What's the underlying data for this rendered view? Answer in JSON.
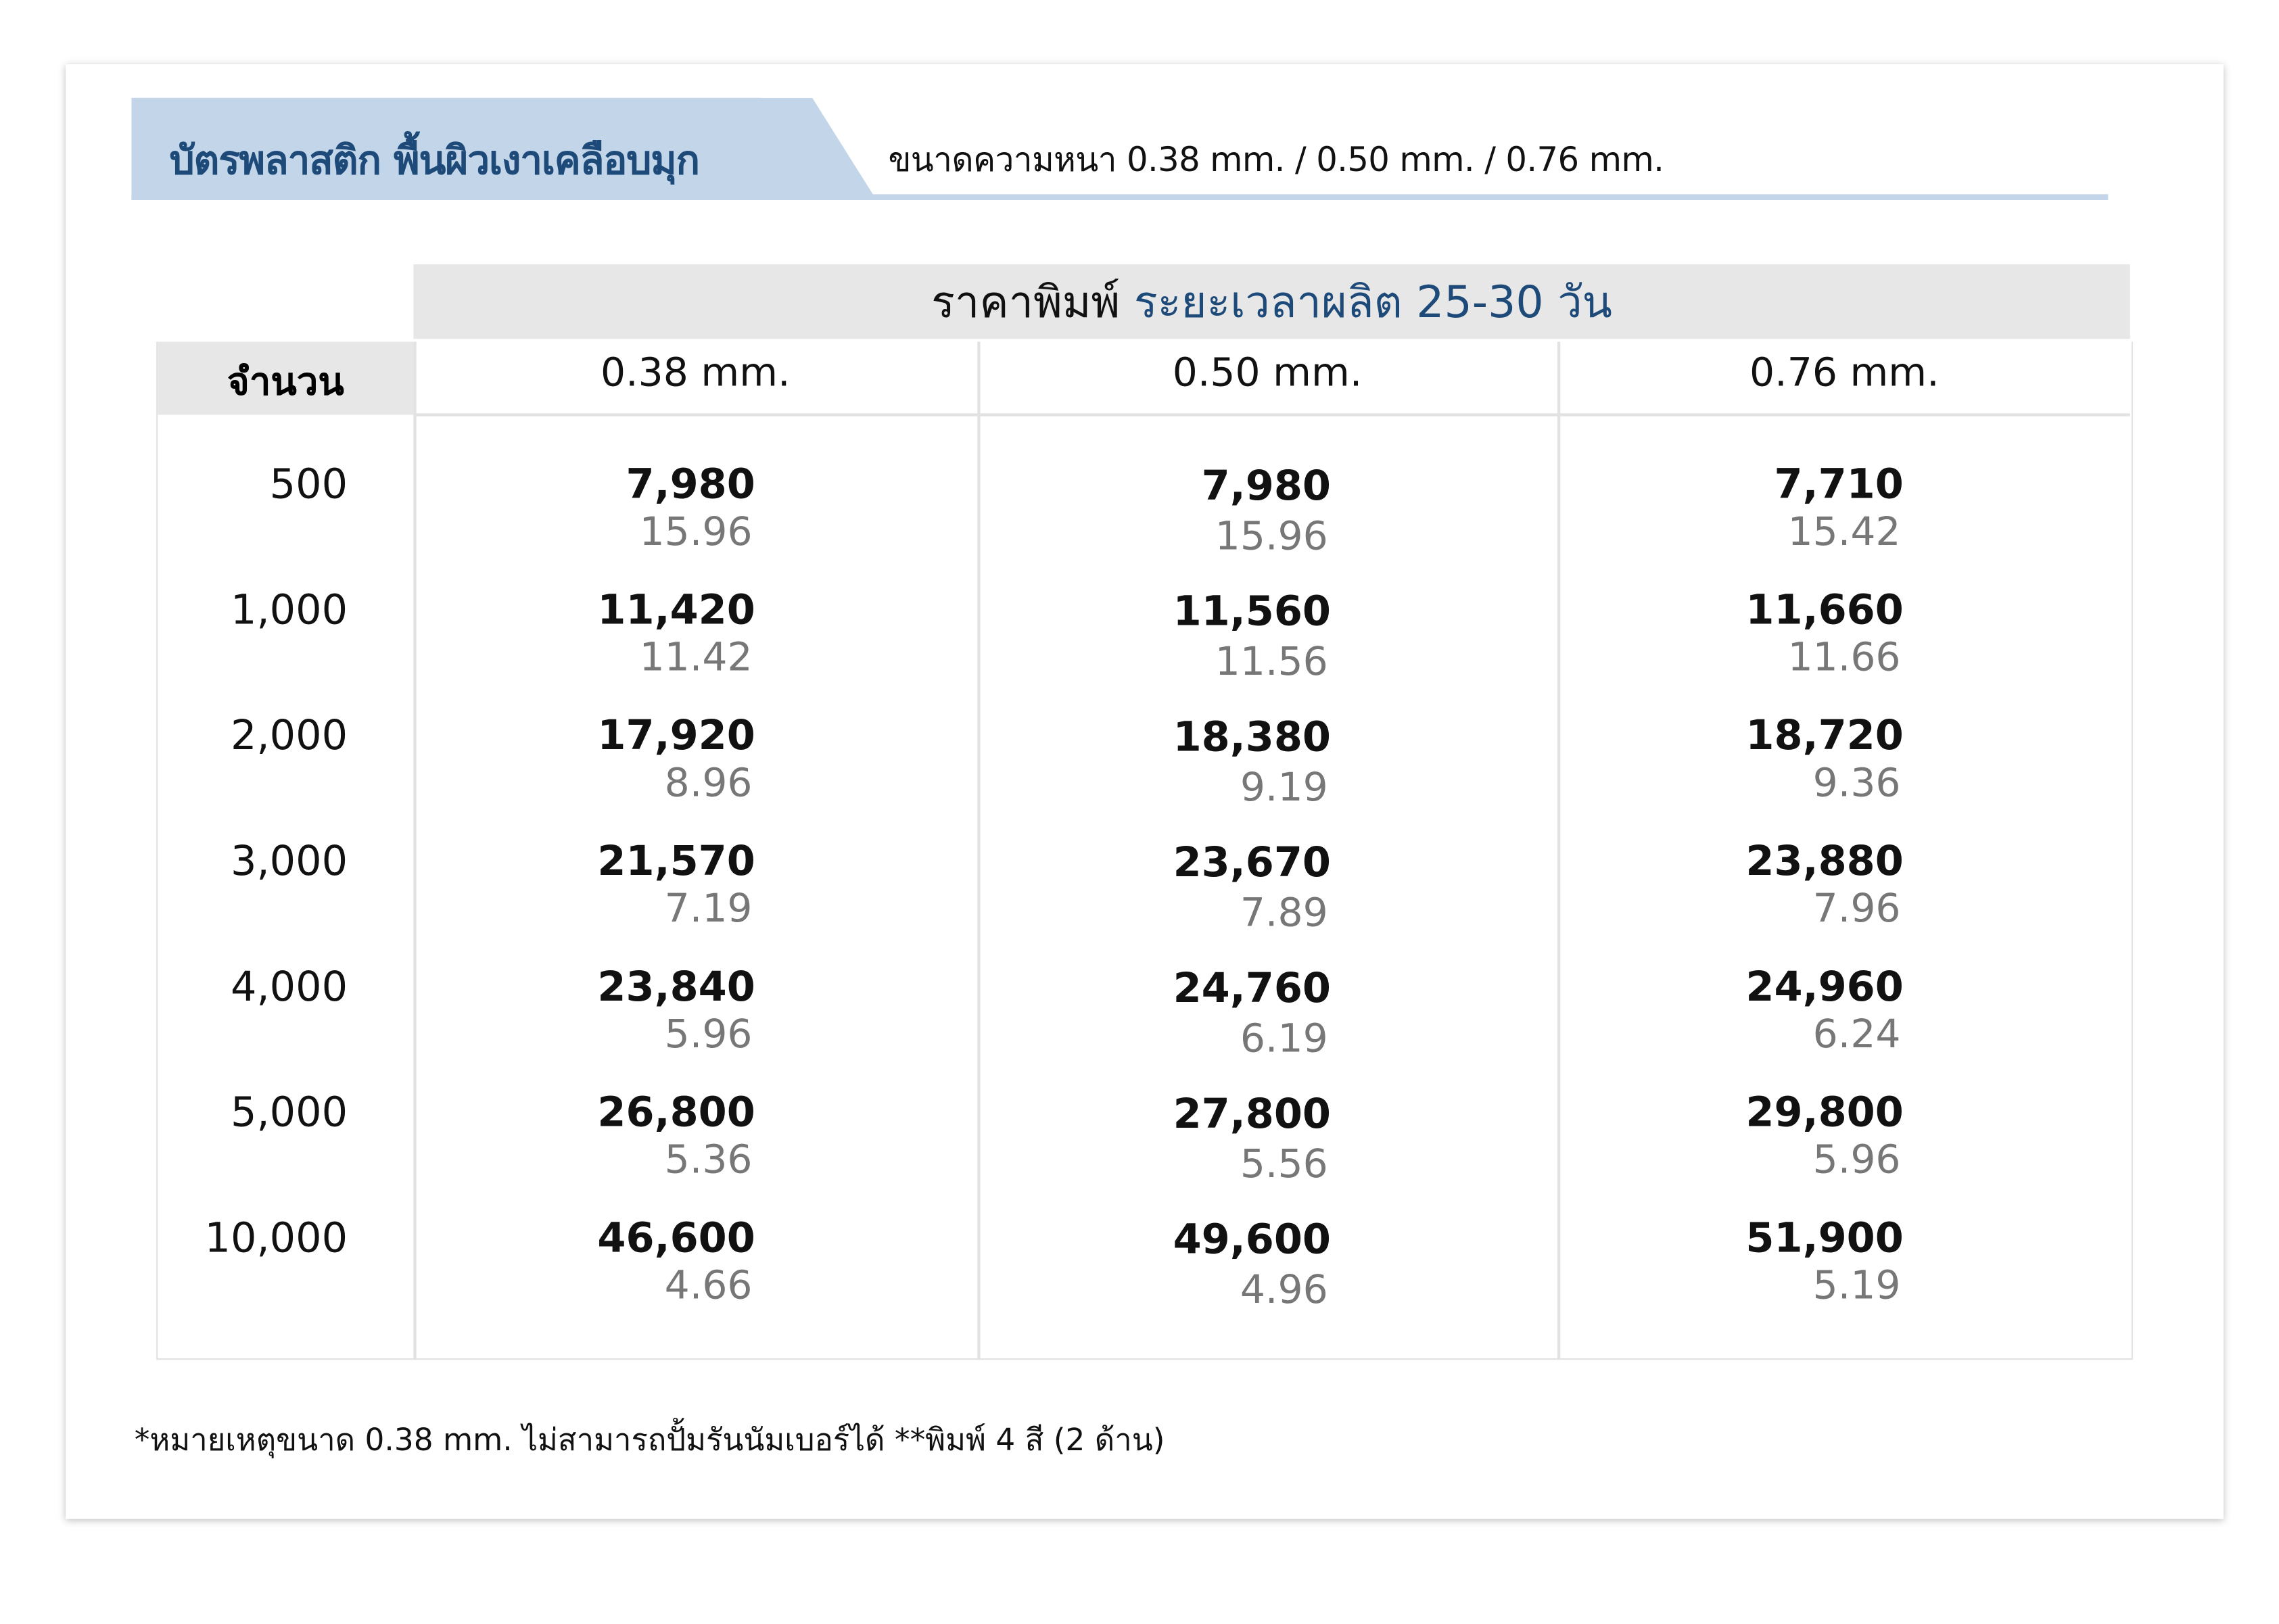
{
  "title": "บัตรพลาสติก พื้นผิวเงาเคลือบมุก",
  "subtitle": "ขนาดความหนา 0.38 mm. / 0.50 mm. / 0.76 mm.",
  "band": {
    "label": "ราคาพิมพ์",
    "highlight": "ระยะเวลาผลิต 25-30 วัน"
  },
  "quantity_header": "จำนวน",
  "columns": [
    "0.38 mm.",
    "0.50 mm.",
    "0.76 mm."
  ],
  "rows": [
    {
      "qty": "500",
      "cells": [
        [
          "7,980",
          "15.96"
        ],
        [
          "7,980",
          "15.96"
        ],
        [
          "7,710",
          "15.42"
        ]
      ]
    },
    {
      "qty": "1,000",
      "cells": [
        [
          "11,420",
          "11.42"
        ],
        [
          "11,560",
          "11.56"
        ],
        [
          "11,660",
          "11.66"
        ]
      ]
    },
    {
      "qty": "2,000",
      "cells": [
        [
          "17,920",
          "8.96"
        ],
        [
          "18,380",
          "9.19"
        ],
        [
          "18,720",
          "9.36"
        ]
      ]
    },
    {
      "qty": "3,000",
      "cells": [
        [
          "21,570",
          "7.19"
        ],
        [
          "23,670",
          "7.89"
        ],
        [
          "23,880",
          "7.96"
        ]
      ]
    },
    {
      "qty": "4,000",
      "cells": [
        [
          "23,840",
          "5.96"
        ],
        [
          "24,760",
          "6.19"
        ],
        [
          "24,960",
          "6.24"
        ]
      ]
    },
    {
      "qty": "5,000",
      "cells": [
        [
          "26,800",
          "5.36"
        ],
        [
          "27,800",
          "5.56"
        ],
        [
          "29,800",
          "5.96"
        ]
      ]
    },
    {
      "qty": "10,000",
      "cells": [
        [
          "46,600",
          "4.66"
        ],
        [
          "49,600",
          "4.96"
        ],
        [
          "51,900",
          "5.19"
        ]
      ]
    }
  ],
  "footer": "*หมายเหตุขนาด 0.38 mm. ไม่สามารถปั้มรันนัมเบอร์ได้  **พิมพ์ 4 สี (2 ด้าน)",
  "colors": {
    "accent": "#1d4a78",
    "tab": "#c3d5e9",
    "header_bg": "#e7e7e7"
  }
}
